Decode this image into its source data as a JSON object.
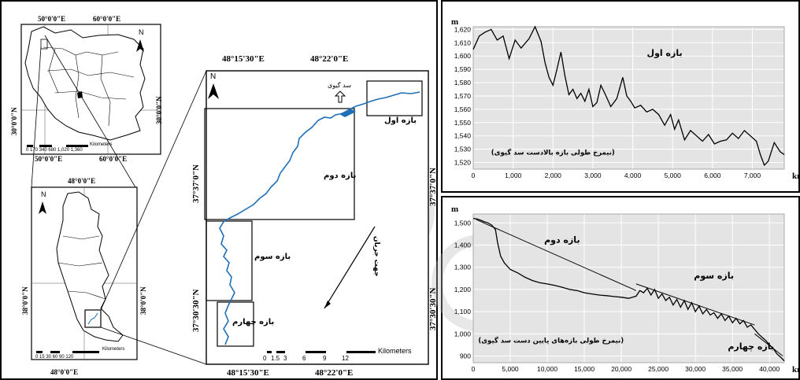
{
  "colors": {
    "river": "#1f6fb8",
    "plot_bg": "#e4e4e4",
    "grid": "#ffffff",
    "line": "#000000",
    "watermark": "#d0d0d0"
  },
  "iran_map": {
    "top_labels": [
      "50°0'0\"E",
      "60°0'0\"E"
    ],
    "bottom_labels": [
      "50°0'0\"E",
      "60°0'0\"E"
    ],
    "left_label": "30°0'0\"N",
    "right_label": "30°0'0\"N",
    "scale_numbers": "0 170 340     680    1,020   1,360",
    "scale_unit": "Kilometers",
    "north": "N"
  },
  "basin_map": {
    "top_label": "48°0'0\"E",
    "bottom_label": "48°0'0\"E",
    "left_label": "38°0'0\"N",
    "right_label": "38°0'0\"N",
    "scale_numbers": "0 15 30  60  90  120",
    "scale_unit": "Kilometers",
    "north": "N"
  },
  "detail_map": {
    "top_labels": [
      "48°15'30\"E",
      "48°22'0\"E"
    ],
    "bottom_labels": [
      "48°15'30\"E",
      "48°22'0\"E"
    ],
    "left_labels": [
      "37°37'0\"N",
      "37°30'30\"N"
    ],
    "right_labels": [
      "37°37'0\"N",
      "37°30'30\"N"
    ],
    "north": "N",
    "dam": "سد گیوی",
    "reach1": "بازه اول",
    "reach2": "بازه دوم",
    "reach3": "بازه سوم",
    "reach4": "بازه چهارم",
    "flow": "جهت جریان",
    "scale_numbers": [
      "0",
      "1.5",
      "3",
      "6",
      "9",
      "12"
    ],
    "scale_unit": "Kilometers"
  },
  "chart_data": [
    {
      "type": "line",
      "ylabel": "m",
      "xlabel": "km",
      "annotation": "بازه اول",
      "caption": "(نیمرخ طولی بازه بالادست سد گیوی)",
      "xlim": [
        0,
        7800
      ],
      "ylim": [
        1515,
        1622
      ],
      "xticks": [
        0,
        1000,
        2000,
        3000,
        4000,
        5000,
        6000,
        7000
      ],
      "xtick_labels": [
        "0",
        "1,000",
        "2,000",
        "3,000",
        "4,000",
        "5,000",
        "6,000",
        "7,000"
      ],
      "yticks": [
        1520,
        1530,
        1540,
        1550,
        1560,
        1570,
        1580,
        1590,
        1600,
        1610,
        1620
      ],
      "ytick_labels": [
        "1,520",
        "1,530",
        "1,540",
        "1,550",
        "1,560",
        "1,570",
        "1,580",
        "1,590",
        "1,600",
        "1,610",
        "1,620"
      ],
      "grid": true,
      "x": [
        0,
        150,
        300,
        450,
        600,
        750,
        900,
        1050,
        1200,
        1400,
        1550,
        1700,
        1800,
        1900,
        2000,
        2100,
        2200,
        2300,
        2400,
        2500,
        2600,
        2700,
        2800,
        2900,
        3000,
        3100,
        3200,
        3300,
        3450,
        3600,
        3750,
        3850,
        3950,
        4050,
        4200,
        4350,
        4500,
        4650,
        4800,
        4950,
        5050,
        5150,
        5300,
        5450,
        5600,
        5750,
        5900,
        6050,
        6200,
        6350,
        6500,
        6650,
        6800,
        6950,
        7100,
        7200,
        7300,
        7400,
        7550,
        7700,
        7800
      ],
      "y": [
        1605,
        1615,
        1618,
        1620,
        1612,
        1615,
        1598,
        1612,
        1606,
        1613,
        1622,
        1611,
        1595,
        1584,
        1578,
        1590,
        1603,
        1585,
        1571,
        1575,
        1568,
        1572,
        1566,
        1575,
        1562,
        1565,
        1578,
        1572,
        1562,
        1568,
        1584,
        1570,
        1566,
        1561,
        1563,
        1558,
        1560,
        1556,
        1548,
        1556,
        1545,
        1552,
        1537,
        1544,
        1540,
        1536,
        1541,
        1534,
        1536,
        1537,
        1542,
        1538,
        1544,
        1540,
        1536,
        1526,
        1518,
        1521,
        1535,
        1528,
        1526
      ]
    },
    {
      "type": "line",
      "ylabel": "m",
      "xlabel": "km",
      "annotations": [
        "بازه دوم",
        "بازه سوم",
        "بازه چهارم"
      ],
      "caption": "(نیمرخ طولی بازه‌های پایین دست سد گیوی)",
      "xlim": [
        0,
        42000
      ],
      "ylim": [
        870,
        1540
      ],
      "xticks": [
        0,
        5000,
        10000,
        15000,
        20000,
        25000,
        30000,
        35000,
        40000
      ],
      "xtick_labels": [
        "0",
        "5,000",
        "10,000",
        "15,000",
        "20,000",
        "25,000",
        "30,000",
        "35,000",
        "40,000"
      ],
      "yticks": [
        900,
        1000,
        1100,
        1200,
        1300,
        1400,
        1500
      ],
      "ytick_labels": [
        "900",
        "1,000",
        "1,100",
        "1,200",
        "1,300",
        "1,400",
        "1,500"
      ],
      "grid": true,
      "x": [
        0,
        500,
        1000,
        1500,
        2000,
        2500,
        3000,
        3300,
        3700,
        4200,
        5000,
        6000,
        7000,
        8000,
        9000,
        10000,
        11000,
        12000,
        13000,
        14000,
        15000,
        16000,
        17000,
        18000,
        19000,
        20000,
        21000,
        22000,
        22500,
        23000,
        23500,
        24000,
        24500,
        25000,
        25500,
        26000,
        26500,
        27000,
        27500,
        28000,
        28500,
        29000,
        29500,
        30000,
        30500,
        31000,
        31500,
        32000,
        32500,
        33000,
        33500,
        34000,
        34500,
        35000,
        35500,
        36000,
        36500,
        37000,
        37500,
        38000,
        38500,
        39000,
        39500,
        40000,
        40500,
        41000,
        41500,
        42000
      ],
      "y": [
        1520,
        1518,
        1512,
        1505,
        1500,
        1490,
        1470,
        1410,
        1350,
        1320,
        1290,
        1275,
        1255,
        1240,
        1230,
        1225,
        1218,
        1210,
        1200,
        1195,
        1185,
        1180,
        1175,
        1172,
        1168,
        1165,
        1160,
        1170,
        1195,
        1185,
        1205,
        1175,
        1200,
        1160,
        1180,
        1150,
        1165,
        1130,
        1155,
        1120,
        1150,
        1110,
        1140,
        1100,
        1125,
        1090,
        1110,
        1085,
        1095,
        1070,
        1090,
        1060,
        1080,
        1050,
        1070,
        1045,
        1060,
        1030,
        1040,
        1020,
        1000,
        985,
        970,
        950,
        935,
        910,
        895,
        878
      ]
    }
  ]
}
